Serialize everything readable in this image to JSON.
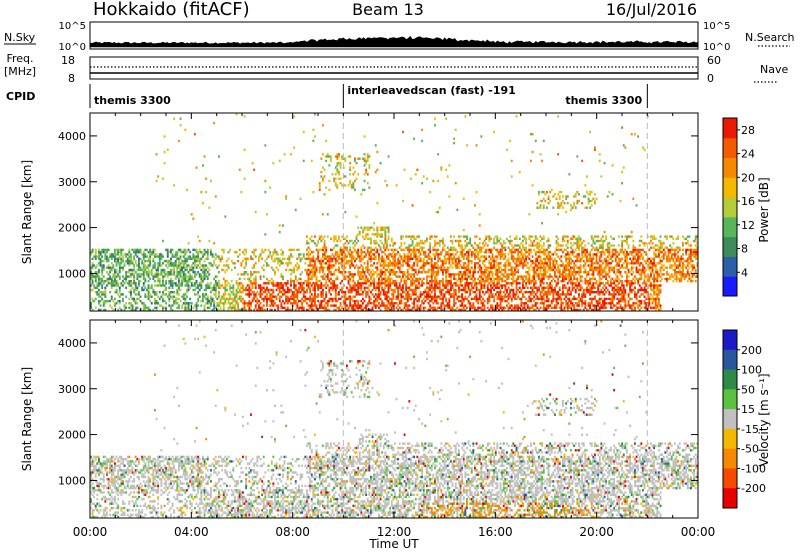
{
  "header": {
    "title": "Hokkaido (fitACF)",
    "beam": "Beam 13",
    "date": "16/Jul/2016"
  },
  "top_panels": {
    "nsky_label": "N.Sky",
    "nsky_ticks": [
      "10^5",
      "10^0"
    ],
    "nsearch_label": "N.Search",
    "nsearch_ticks": [
      "10^5",
      "10^0"
    ],
    "freq_label_line1": "Freq.",
    "freq_label_line2": "[MHz]",
    "freq_ticks": [
      "18",
      "8"
    ],
    "nave_label": "Nave",
    "nave_ticks": [
      "60",
      "0"
    ],
    "cpid_label": "CPID",
    "cpid_segments": [
      {
        "label": "themis 3300",
        "start_hour": 0,
        "end_hour": 10
      },
      {
        "label": "interleavedscan (fast) -191",
        "start_hour": 10,
        "end_hour": 22
      },
      {
        "label": "themis 3300",
        "start_hour": 22,
        "end_hour": 24
      }
    ]
  },
  "chart_data": [
    {
      "type": "heatmap",
      "title": "",
      "xlabel": "",
      "ylabel": "Slant Range [km]",
      "xlim": [
        0,
        24
      ],
      "ylim": [
        180,
        4500
      ],
      "y_ticks": [
        1000,
        2000,
        3000,
        4000
      ],
      "colorbar_label": "Power [dB]",
      "colorbar_ticks": [
        4,
        8,
        12,
        16,
        20,
        24,
        28
      ],
      "colorbar_range": [
        0,
        30
      ],
      "colorbar_colors": [
        "#1a1aff",
        "#2b5fa8",
        "#3d8a5a",
        "#57b55a",
        "#b5cc3a",
        "#f5b800",
        "#f58a00",
        "#f55a00",
        "#e81a00"
      ]
    },
    {
      "type": "heatmap",
      "title": "",
      "xlabel": "Time UT",
      "ylabel": "Slant Range [km]",
      "xlim": [
        0,
        24
      ],
      "ylim": [
        180,
        4500
      ],
      "x_ticks": [
        "00:00",
        "04:00",
        "08:00",
        "12:00",
        "16:00",
        "20:00",
        "00:00"
      ],
      "y_ticks": [
        1000,
        2000,
        3000,
        4000
      ],
      "colorbar_label": "Velocity [m s⁻¹]",
      "colorbar_ticks": [
        "200",
        "100",
        "50",
        "15",
        "-15",
        "-50",
        "-100",
        "-200"
      ],
      "colorbar_colors": [
        "#1a1ac8",
        "#2a55a0",
        "#2f8a48",
        "#5cc040",
        "#c0c0c0",
        "#f5b800",
        "#f58a00",
        "#f54a00",
        "#e80000"
      ]
    }
  ]
}
